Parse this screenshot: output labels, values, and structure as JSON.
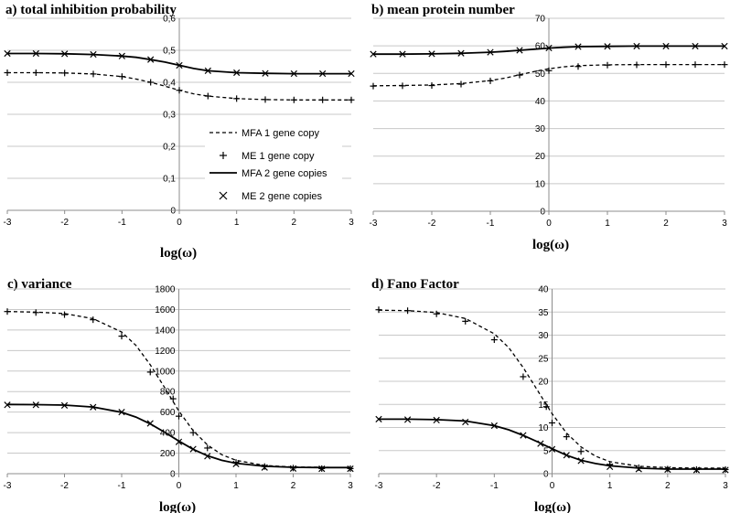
{
  "figure": {
    "legend": [
      {
        "label": "MFA 1 gene copy",
        "style": "dashed-line",
        "series_key": "mfa1"
      },
      {
        "label": "ME  1 gene copy",
        "style": "plus-marker",
        "series_key": "me1"
      },
      {
        "label": "MFA 2 gene copies",
        "style": "solid-line",
        "series_key": "mfa2"
      },
      {
        "label": "ME  2 gene copies",
        "style": "x-marker",
        "series_key": "me2"
      }
    ]
  },
  "chart_data": [
    {
      "type": "line",
      "title": "a) total inhibition probability",
      "xlabel": "log(ω)",
      "ylabel": "",
      "xlim": [
        -3,
        3
      ],
      "ylim": [
        0,
        0.6
      ],
      "xticks": [
        "-3",
        "-2",
        "-1",
        "0",
        "1",
        "2",
        "3"
      ],
      "yticks": [
        "0",
        "0,1",
        "0,2",
        "0,3",
        "0,4",
        "0,5",
        "0,6"
      ],
      "ytick_values": [
        0,
        0.1,
        0.2,
        0.3,
        0.4,
        0.5,
        0.6
      ],
      "legend_position": "lower-right",
      "series": [
        {
          "name": "MFA 1 gene copy",
          "key": "mfa1",
          "style": "dashed",
          "x": [
            -3,
            -2.5,
            -2,
            -1.5,
            -1,
            -0.75,
            -0.5,
            -0.25,
            0,
            0.25,
            0.5,
            1,
            1.5,
            2,
            2.5,
            3
          ],
          "values": [
            0.43,
            0.43,
            0.429,
            0.426,
            0.418,
            0.41,
            0.4,
            0.388,
            0.375,
            0.364,
            0.357,
            0.349,
            0.346,
            0.345,
            0.345,
            0.345
          ]
        },
        {
          "name": "ME  1 gene copy",
          "key": "me1",
          "style": "plus",
          "x": [
            -3,
            -2.5,
            -2,
            -1.5,
            -1,
            -0.5,
            0,
            0.5,
            1,
            1.5,
            2,
            2.5,
            3
          ],
          "values": [
            0.43,
            0.43,
            0.429,
            0.426,
            0.418,
            0.4,
            0.375,
            0.357,
            0.349,
            0.346,
            0.345,
            0.345,
            0.345
          ]
        },
        {
          "name": "MFA 2 gene copies",
          "key": "mfa2",
          "style": "solid",
          "x": [
            -3,
            -2.5,
            -2,
            -1.5,
            -1,
            -0.75,
            -0.5,
            -0.25,
            0,
            0.25,
            0.5,
            1,
            1.5,
            2,
            2.5,
            3
          ],
          "values": [
            0.49,
            0.49,
            0.489,
            0.487,
            0.482,
            0.478,
            0.471,
            0.463,
            0.453,
            0.443,
            0.436,
            0.43,
            0.428,
            0.427,
            0.427,
            0.427
          ]
        },
        {
          "name": "ME  2 gene copies",
          "key": "me2",
          "style": "x",
          "x": [
            -3,
            -2.5,
            -2,
            -1.5,
            -1,
            -0.5,
            0,
            0.5,
            1,
            1.5,
            2,
            2.5,
            3
          ],
          "values": [
            0.49,
            0.49,
            0.489,
            0.487,
            0.482,
            0.471,
            0.453,
            0.436,
            0.43,
            0.428,
            0.427,
            0.427,
            0.427
          ]
        }
      ]
    },
    {
      "type": "line",
      "title": "b) mean protein number",
      "xlabel": "log(ω)",
      "ylabel": "",
      "xlim": [
        -3,
        3
      ],
      "ylim": [
        0,
        70
      ],
      "xticks": [
        "-3",
        "-2",
        "-1",
        "0",
        "1",
        "2",
        "3"
      ],
      "yticks": [
        "0",
        "10",
        "20",
        "30",
        "40",
        "50",
        "60",
        "70"
      ],
      "ytick_values": [
        0,
        10,
        20,
        30,
        40,
        50,
        60,
        70
      ],
      "series": [
        {
          "name": "MFA 1 gene copy",
          "key": "mfa1",
          "style": "dashed",
          "x": [
            -3,
            -2.5,
            -2,
            -1.5,
            -1,
            -0.75,
            -0.5,
            -0.25,
            0,
            0.25,
            0.5,
            1,
            1.5,
            2,
            2.5,
            3
          ],
          "values": [
            45.5,
            45.6,
            45.8,
            46.3,
            47.4,
            48.3,
            49.5,
            50.7,
            51.7,
            52.4,
            52.8,
            53.1,
            53.2,
            53.2,
            53.2,
            53.2
          ]
        },
        {
          "name": "ME  1 gene copy",
          "key": "me1",
          "style": "plus",
          "x": [
            -3,
            -2.5,
            -2,
            -1.5,
            -1,
            -0.5,
            0,
            0.5,
            1,
            1.5,
            2,
            2.5,
            3
          ],
          "values": [
            45.4,
            45.5,
            45.6,
            46.1,
            47.3,
            49.4,
            51.0,
            52.5,
            53.0,
            53.1,
            53.2,
            53.2,
            53.2
          ]
        },
        {
          "name": "MFA 2 gene copies",
          "key": "mfa2",
          "style": "solid",
          "x": [
            -3,
            -2.5,
            -2,
            -1.5,
            -1,
            -0.75,
            -0.5,
            -0.25,
            0,
            0.25,
            0.5,
            1,
            1.5,
            2,
            2.5,
            3
          ],
          "values": [
            57.0,
            57.0,
            57.1,
            57.3,
            57.7,
            58.0,
            58.4,
            58.8,
            59.2,
            59.5,
            59.7,
            59.8,
            59.9,
            59.9,
            59.9,
            59.9
          ]
        },
        {
          "name": "ME  2 gene copies",
          "key": "me2",
          "style": "x",
          "x": [
            -3,
            -2.5,
            -2,
            -1.5,
            -1,
            -0.5,
            0,
            0.5,
            1,
            1.5,
            2,
            2.5,
            3
          ],
          "values": [
            57.0,
            57.0,
            57.1,
            57.3,
            57.7,
            58.4,
            59.2,
            59.7,
            59.8,
            59.9,
            59.9,
            59.9,
            59.9
          ]
        }
      ]
    },
    {
      "type": "line",
      "title": "c) variance",
      "xlabel": "log(ω)",
      "ylabel": "",
      "xlim": [
        -3,
        3
      ],
      "ylim": [
        0,
        1800
      ],
      "xticks": [
        "-3",
        "-2",
        "-1",
        "0",
        "1",
        "2",
        "3"
      ],
      "yticks": [
        "0",
        "200",
        "400",
        "600",
        "800",
        "1000",
        "1200",
        "1400",
        "1600",
        "1800"
      ],
      "ytick_values": [
        0,
        200,
        400,
        600,
        800,
        1000,
        1200,
        1400,
        1600,
        1800
      ],
      "series": [
        {
          "name": "MFA 1 gene copy",
          "key": "mfa1",
          "style": "dashed",
          "x": [
            -3,
            -2.5,
            -2,
            -1.5,
            -1,
            -0.75,
            -0.5,
            -0.25,
            0,
            0.25,
            0.5,
            0.75,
            1,
            1.5,
            2,
            2.5,
            3
          ],
          "values": [
            1580,
            1575,
            1560,
            1510,
            1380,
            1250,
            1060,
            840,
            610,
            420,
            280,
            185,
            130,
            80,
            65,
            62,
            60
          ]
        },
        {
          "name": "ME  1 gene copy",
          "key": "me1",
          "style": "plus",
          "x": [
            -3,
            -2.5,
            -2,
            -1.5,
            -1,
            -0.5,
            -0.1,
            0,
            0.25,
            0.5,
            1,
            1.5,
            2,
            2.5,
            3
          ],
          "values": [
            1580,
            1570,
            1550,
            1500,
            1340,
            990,
            730,
            560,
            400,
            250,
            110,
            70,
            55,
            50,
            50
          ]
        },
        {
          "name": "MFA 2 gene copies",
          "key": "mfa2",
          "style": "solid",
          "x": [
            -3,
            -2.5,
            -2,
            -1.5,
            -1,
            -0.75,
            -0.5,
            -0.25,
            0,
            0.25,
            0.5,
            0.75,
            1,
            1.5,
            2,
            2.5,
            3
          ],
          "values": [
            675,
            673,
            668,
            650,
            598,
            552,
            485,
            405,
            318,
            238,
            175,
            130,
            102,
            72,
            62,
            60,
            60
          ]
        },
        {
          "name": "ME  2 gene copies",
          "key": "me2",
          "style": "x",
          "x": [
            -3,
            -2.5,
            -2,
            -1.5,
            -1,
            -0.5,
            0,
            0.25,
            0.5,
            1,
            1.5,
            2,
            2.5,
            3
          ],
          "values": [
            670,
            670,
            665,
            648,
            600,
            490,
            310,
            240,
            170,
            95,
            60,
            50,
            48,
            48
          ]
        }
      ]
    },
    {
      "type": "line",
      "title": "d) Fano Factor",
      "xlabel": "log(ω)",
      "ylabel": "",
      "xlim": [
        -3,
        3
      ],
      "ylim": [
        0,
        40
      ],
      "xticks": [
        "-3",
        "-2",
        "-1",
        "0",
        "1",
        "2",
        "3"
      ],
      "yticks": [
        "0",
        "5",
        "10",
        "15",
        "20",
        "25",
        "30",
        "35",
        "40"
      ],
      "ytick_values": [
        0,
        5,
        10,
        15,
        20,
        25,
        30,
        35,
        40
      ],
      "series": [
        {
          "name": "MFA 1 gene copy",
          "key": "mfa1",
          "style": "dashed",
          "x": [
            -3,
            -2.5,
            -2,
            -1.5,
            -1,
            -0.75,
            -0.5,
            -0.25,
            0,
            0.25,
            0.5,
            0.75,
            1,
            1.5,
            2,
            2.5,
            3
          ],
          "values": [
            35.4,
            35.3,
            34.9,
            33.6,
            30.3,
            27.3,
            23.0,
            18.0,
            13.0,
            8.8,
            5.8,
            3.8,
            2.6,
            1.6,
            1.3,
            1.2,
            1.2
          ]
        },
        {
          "name": "ME  1 gene copy",
          "key": "me1",
          "style": "plus",
          "x": [
            -3,
            -2.5,
            -2,
            -1.5,
            -1,
            -0.5,
            -0.1,
            0,
            0.25,
            0.5,
            1,
            1.5,
            2,
            2.5,
            3
          ],
          "values": [
            35.5,
            35.3,
            34.6,
            33.0,
            29.0,
            21.0,
            14.5,
            11.0,
            8.0,
            4.8,
            2.0,
            1.3,
            1.0,
            0.9,
            0.9
          ]
        },
        {
          "name": "MFA 2 gene copies",
          "key": "mfa2",
          "style": "solid",
          "x": [
            -3,
            -2.5,
            -2,
            -1.5,
            -1,
            -0.75,
            -0.5,
            -0.25,
            0,
            0.25,
            0.5,
            0.75,
            1,
            1.5,
            2,
            2.5,
            3
          ],
          "values": [
            11.8,
            11.8,
            11.7,
            11.4,
            10.4,
            9.5,
            8.3,
            6.9,
            5.4,
            4.0,
            2.9,
            2.2,
            1.7,
            1.2,
            1.0,
            1.0,
            1.0
          ]
        },
        {
          "name": "ME  2 gene copies",
          "key": "me2",
          "style": "x",
          "x": [
            -3,
            -2.5,
            -2,
            -1.5,
            -1,
            -0.5,
            -0.2,
            0,
            0.25,
            0.5,
            1,
            1.5,
            2,
            2.5,
            3
          ],
          "values": [
            11.8,
            11.7,
            11.6,
            11.2,
            10.4,
            8.3,
            6.5,
            5.3,
            4.0,
            2.8,
            1.5,
            1.0,
            0.9,
            0.8,
            0.8
          ]
        }
      ]
    }
  ]
}
